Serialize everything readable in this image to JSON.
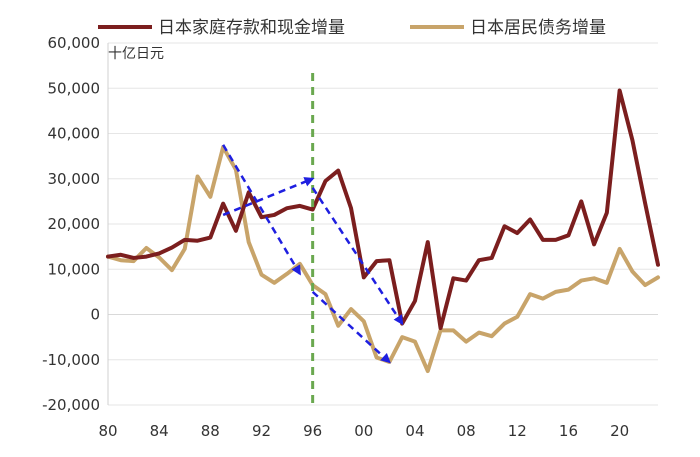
{
  "chart_data": {
    "type": "line",
    "unit_label": "十亿日元",
    "legend": [
      "日本家庭存款和现金增量",
      "日本居民债务增量"
    ],
    "x_tick_labels": [
      "80",
      "84",
      "88",
      "92",
      "96",
      "00",
      "04",
      "08",
      "12",
      "16",
      "20"
    ],
    "x_ticks": [
      1980,
      1984,
      1988,
      1992,
      1996,
      2000,
      2004,
      2008,
      2012,
      2016,
      2020
    ],
    "xlim": [
      1980,
      2023
    ],
    "ylim": [
      -20000,
      60000
    ],
    "y_ticks": [
      -20000,
      -10000,
      0,
      10000,
      20000,
      30000,
      40000,
      50000,
      60000
    ],
    "y_tick_labels": [
      "-20,000",
      "-10,000",
      "0",
      "10,000",
      "20,000",
      "30,000",
      "40,000",
      "50,000",
      "60,000"
    ],
    "grid": "horizontal",
    "legend_position": "top",
    "x": [
      1980,
      1981,
      1982,
      1983,
      1984,
      1985,
      1986,
      1987,
      1988,
      1989,
      1990,
      1991,
      1992,
      1993,
      1994,
      1995,
      1996,
      1997,
      1998,
      1999,
      2000,
      2001,
      2002,
      2003,
      2004,
      2005,
      2006,
      2007,
      2008,
      2009,
      2010,
      2011,
      2012,
      2013,
      2014,
      2015,
      2016,
      2017,
      2018,
      2019,
      2020,
      2021,
      2022,
      2023
    ],
    "series": [
      {
        "name": "日本家庭存款和现金增量",
        "color": "#7b1e1e",
        "values": [
          12800,
          13200,
          12500,
          12800,
          13500,
          14800,
          16500,
          16300,
          17000,
          24500,
          18500,
          27000,
          21500,
          22000,
          23500,
          24000,
          23200,
          29500,
          31800,
          23500,
          8200,
          11800,
          12000,
          -2000,
          3000,
          16000,
          -3000,
          8000,
          7500,
          12000,
          12500,
          19500,
          18000,
          21000,
          16500,
          16500,
          17500,
          25000,
          15500,
          22500,
          49500,
          38500,
          24500,
          11000
        ]
      },
      {
        "name": "日本居民债务增量",
        "color": "#c8a46a",
        "values": [
          12800,
          12000,
          11800,
          14700,
          12600,
          9800,
          14500,
          30500,
          26000,
          37000,
          32000,
          16000,
          8800,
          7000,
          9000,
          11200,
          6500,
          4500,
          -2500,
          1200,
          -1500,
          -9500,
          -10500,
          -5000,
          -6000,
          -12500,
          -3500,
          -3500,
          -6000,
          -4000,
          -4800,
          -2000,
          -500,
          4500,
          3500,
          5000,
          5500,
          7500,
          8000,
          7000,
          14500,
          9500,
          6500,
          8200
        ]
      }
    ],
    "annotations": [
      {
        "type": "vertical_dashed_line",
        "x": 1996,
        "color": "#6aa84f"
      },
      {
        "type": "arrow",
        "from": [
          1989,
          22000
        ],
        "to": [
          1996,
          30000
        ],
        "color": "#1f1fe0"
      },
      {
        "type": "arrow",
        "from": [
          1989,
          37500
        ],
        "to": [
          1995,
          9000
        ],
        "color": "#1f1fe0"
      },
      {
        "type": "arrow",
        "from": [
          1996,
          28000
        ],
        "to": [
          2003,
          -2000
        ],
        "color": "#1f1fe0"
      },
      {
        "type": "arrow",
        "from": [
          1996,
          5000
        ],
        "to": [
          2002,
          -10500
        ],
        "color": "#1f1fe0"
      }
    ]
  }
}
